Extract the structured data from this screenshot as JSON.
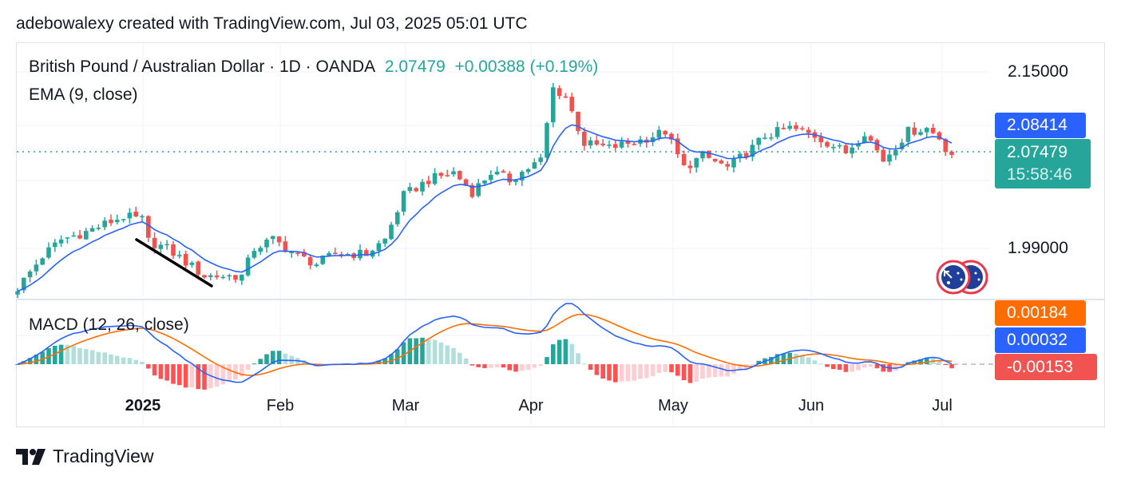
{
  "credit": "adebowalexy created with TradingView.com, Jul 03, 2025 05:01 UTC",
  "symbol": {
    "name": "British Pound / Australian Dollar · 1D · OANDA",
    "price": "2.07479",
    "change": "+0.00388 (+0.19%)"
  },
  "indicators": {
    "ema": "EMA (9, close)",
    "macd": "MACD (12, 26, close)"
  },
  "price_axis": {
    "ticks": [
      "2.15000",
      "1.99000"
    ]
  },
  "tags": {
    "ema_value": "2.08414",
    "last_price": "2.07479",
    "countdown": "15:58:46",
    "signal_value": "0.00184",
    "macd_value": "0.00032",
    "hist_value": "-0.00153"
  },
  "time_axis": {
    "labels": [
      "2025",
      "Feb",
      "Mar",
      "Apr",
      "May",
      "Jun",
      "Jul"
    ]
  },
  "footer": {
    "brand": "TradingView"
  },
  "colors": {
    "up": "#26a69a",
    "down": "#ef5350",
    "ema": "#2962ff",
    "signal": "#ff6d00",
    "hist_neg": "#ff5252"
  },
  "chart_data": {
    "type": "candlestick",
    "title": "British Pound / Australian Dollar · 1D · OANDA",
    "bars": 151,
    "ylim": [
      1.947,
      2.163
    ],
    "close_anchors_by_bar_index": [
      [
        0,
        1.954
      ],
      [
        4,
        1.983
      ],
      [
        7,
        1.998
      ],
      [
        11,
        2.005
      ],
      [
        17,
        2.019
      ],
      [
        20,
        2.016
      ],
      [
        20.3,
        1.998
      ],
      [
        24,
        1.99
      ],
      [
        30,
        1.965
      ],
      [
        36,
        1.965
      ],
      [
        38,
        1.99
      ],
      [
        41,
        1.998
      ],
      [
        45,
        1.983
      ],
      [
        48,
        1.976
      ],
      [
        51,
        1.985
      ],
      [
        56,
        1.985
      ],
      [
        59,
        1.998
      ],
      [
        62,
        2.038
      ],
      [
        66,
        2.052
      ],
      [
        70,
        2.059
      ],
      [
        73,
        2.041
      ],
      [
        76,
        2.059
      ],
      [
        79,
        2.052
      ],
      [
        84,
        2.07
      ],
      [
        86,
        2.135
      ],
      [
        88,
        2.128
      ],
      [
        91,
        2.085
      ],
      [
        95,
        2.081
      ],
      [
        100,
        2.088
      ],
      [
        104,
        2.096
      ],
      [
        107,
        2.063
      ],
      [
        110,
        2.074
      ],
      [
        114,
        2.063
      ],
      [
        118,
        2.081
      ],
      [
        120,
        2.092
      ],
      [
        124,
        2.099
      ],
      [
        128,
        2.092
      ],
      [
        133,
        2.077
      ],
      [
        136,
        2.096
      ],
      [
        139,
        2.07
      ],
      [
        143,
        2.096
      ],
      [
        146,
        2.099
      ],
      [
        148.5,
        2.088
      ],
      [
        149.5,
        2.074
      ],
      [
        150,
        2.07479
      ]
    ],
    "indicators": [
      "EMA 9 (close)",
      "MACD 12/26/9 (close)"
    ],
    "last": {
      "close": 2.07479,
      "ema": 2.08414,
      "signal": 0.00184,
      "macd": 0.00032,
      "histogram": -0.00153
    },
    "annotation": "downward trendline drawn in late December to early January"
  }
}
